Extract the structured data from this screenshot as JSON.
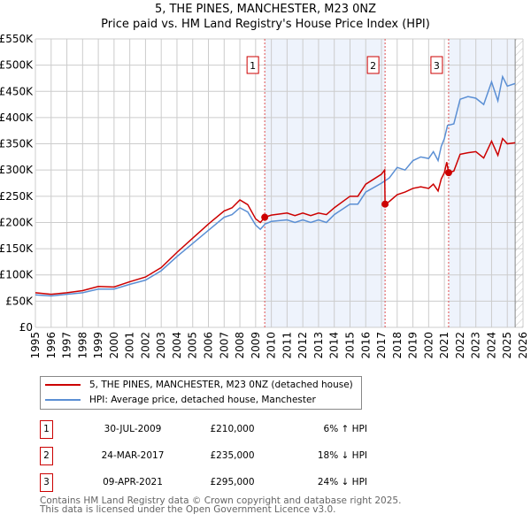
{
  "chart_data": {
    "type": "line",
    "title": "5, THE PINES, MANCHESTER, M23 0NZ",
    "subtitle": "Price paid vs. HM Land Registry's House Price Index (HPI)",
    "xlim": [
      1995,
      2026
    ],
    "ylim": [
      0,
      550000
    ],
    "y_ticks": [
      0,
      50000,
      100000,
      150000,
      200000,
      250000,
      300000,
      350000,
      400000,
      450000,
      500000,
      550000
    ],
    "y_tick_labels": [
      "£0",
      "£50K",
      "£100K",
      "£150K",
      "£200K",
      "£250K",
      "£300K",
      "£350K",
      "£400K",
      "£450K",
      "£500K",
      "£550K"
    ],
    "x_ticks": [
      "1995",
      "1996",
      "1997",
      "1998",
      "1999",
      "2000",
      "2001",
      "2002",
      "2003",
      "2004",
      "2005",
      "2006",
      "2007",
      "2008",
      "2009",
      "2010",
      "2011",
      "2012",
      "2013",
      "2014",
      "2015",
      "2016",
      "2017",
      "2018",
      "2019",
      "2020",
      "2021",
      "2022",
      "2023",
      "2024",
      "2025",
      "2026"
    ],
    "grid": true,
    "colors": {
      "property": "#cc0000",
      "hpi": "#5b8fd4",
      "shade": "#eef3fc"
    },
    "series": [
      {
        "name": "5, THE PINES, MANCHESTER, M23 0NZ (detached house)",
        "x": [
          1995,
          1996,
          1997,
          1998,
          1999,
          2000,
          2001,
          2002,
          2003,
          2004,
          2005,
          2006,
          2007,
          2007.5,
          2008,
          2008.5,
          2009,
          2009.3,
          2009.58,
          2010,
          2011,
          2011.5,
          2012,
          2012.5,
          2013,
          2013.5,
          2014,
          2015,
          2015.5,
          2016,
          2017,
          2017.2,
          2017.23,
          2017.5,
          2018,
          2018.5,
          2019,
          2019.5,
          2020,
          2020.3,
          2020.6,
          2020.8,
          2021,
          2021.15,
          2021.27,
          2021.6,
          2022,
          2022.5,
          2023,
          2023.5,
          2024,
          2024.4,
          2024.7,
          2025,
          2025.5
        ],
        "y": [
          66000,
          63000,
          66000,
          70000,
          78000,
          77000,
          87000,
          96000,
          114000,
          143000,
          170000,
          197000,
          222000,
          228000,
          243000,
          234000,
          207000,
          200000,
          210000,
          214000,
          218000,
          213000,
          218000,
          213000,
          218000,
          215000,
          228000,
          250000,
          250000,
          273000,
          292000,
          300000,
          235000,
          240000,
          253000,
          258000,
          265000,
          268000,
          265000,
          273000,
          260000,
          283000,
          295000,
          315000,
          295000,
          298000,
          330000,
          333000,
          335000,
          323000,
          355000,
          328000,
          360000,
          350000,
          352000
        ]
      },
      {
        "name": "HPI: Average price, detached house, Manchester",
        "x": [
          1995,
          1996,
          1997,
          1998,
          1999,
          2000,
          2001,
          2002,
          2003,
          2004,
          2005,
          2006,
          2007,
          2007.5,
          2008,
          2008.5,
          2009,
          2009.3,
          2009.6,
          2010,
          2011,
          2011.5,
          2012,
          2012.5,
          2013,
          2013.5,
          2014,
          2015,
          2015.5,
          2016,
          2017,
          2017.5,
          2018,
          2018.5,
          2019,
          2019.5,
          2020,
          2020.3,
          2020.6,
          2020.8,
          2021,
          2021.2,
          2021.6,
          2022,
          2022.5,
          2023,
          2023.5,
          2024,
          2024.4,
          2024.7,
          2025,
          2025.5
        ],
        "y": [
          62000,
          60000,
          63000,
          66000,
          73000,
          73000,
          82000,
          90000,
          108000,
          135000,
          160000,
          185000,
          210000,
          215000,
          228000,
          220000,
          195000,
          187000,
          197000,
          202000,
          205000,
          200000,
          205000,
          200000,
          205000,
          200000,
          215000,
          235000,
          235000,
          258000,
          275000,
          285000,
          305000,
          300000,
          318000,
          325000,
          322000,
          335000,
          318000,
          345000,
          360000,
          385000,
          388000,
          435000,
          440000,
          437000,
          425000,
          468000,
          432000,
          478000,
          460000,
          465000
        ]
      }
    ],
    "sales": [
      {
        "label": "1",
        "x": 2009.58,
        "price": 210000,
        "date": "30-JUL-2009",
        "price_text": "£210,000",
        "hpi_text": "6% ↑ HPI"
      },
      {
        "label": "2",
        "x": 2017.23,
        "price": 235000,
        "date": "24-MAR-2017",
        "price_text": "£235,000",
        "hpi_text": "18% ↓ HPI"
      },
      {
        "label": "3",
        "x": 2021.27,
        "price": 295000,
        "date": "09-APR-2021",
        "price_text": "£295,000",
        "hpi_text": "24% ↓ HPI"
      }
    ],
    "forecast_from": 2025.5
  },
  "legend": {
    "property": "5, THE PINES, MANCHESTER, M23 0NZ (detached house)",
    "hpi": "HPI: Average price, detached house, Manchester"
  },
  "footer": {
    "line1": "Contains HM Land Registry data © Crown copyright and database right 2025.",
    "line2": "This data is licensed under the Open Government Licence v3.0."
  }
}
